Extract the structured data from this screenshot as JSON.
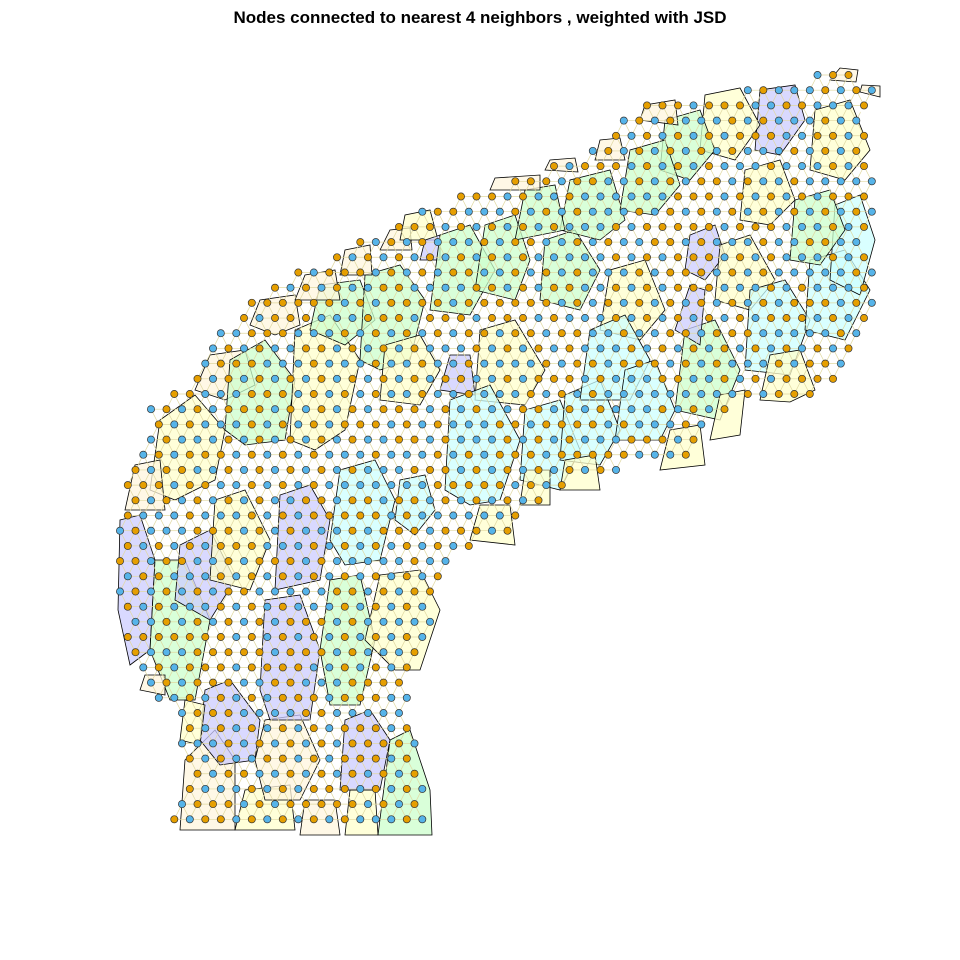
{
  "title": "Nodes connected to nearest 4 neighbors , weighted with JSD",
  "legend": null,
  "palette": {
    "node_colors": [
      "#56b4e9",
      "#e69f00"
    ],
    "cluster_fills": [
      "#ffffcc",
      "#ccffcc",
      "#ccccff",
      "#ccffff",
      "#fff5dd",
      "#e8ffc8"
    ],
    "edge_color": "#e0d8a0",
    "outline_color": "#000000",
    "background": "#ffffff"
  }
}
